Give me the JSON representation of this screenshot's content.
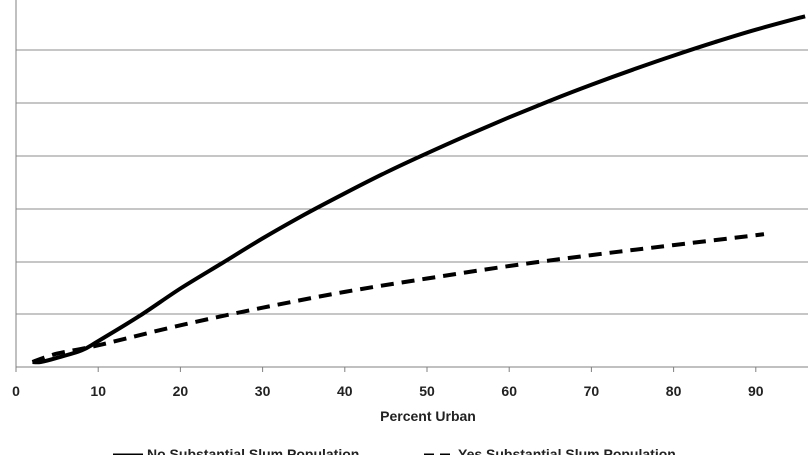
{
  "chart_data": {
    "type": "line",
    "title": "",
    "xlabel": "Percent Urban",
    "ylabel": "",
    "xlim": [
      0,
      96
    ],
    "x_ticks": [
      0,
      10,
      20,
      30,
      40,
      50,
      60,
      70,
      80,
      90
    ],
    "grid": "horizontal",
    "legend_position": "bottom",
    "series": [
      {
        "name": "No Substantial  Slum Population",
        "style": "solid",
        "color": "#000000",
        "x": [
          2,
          3,
          5,
          8,
          10,
          15,
          20,
          25,
          30,
          35,
          40,
          45,
          50,
          55,
          60,
          65,
          70,
          75,
          80,
          85,
          90,
          96
        ],
        "y": [
          0.0,
          0.0,
          0.05,
          0.14,
          0.25,
          0.55,
          0.88,
          1.18,
          1.48,
          1.76,
          2.02,
          2.27,
          2.5,
          2.72,
          2.93,
          3.13,
          3.32,
          3.5,
          3.67,
          3.83,
          3.98,
          4.14
        ]
      },
      {
        "name": "Yes Substantial  Slum Population",
        "style": "dashed",
        "color": "#000000",
        "x": [
          2,
          5,
          10,
          20,
          30,
          40,
          50,
          60,
          70,
          80,
          91
        ],
        "y": [
          0.0,
          0.1,
          0.2,
          0.44,
          0.65,
          0.84,
          1.0,
          1.15,
          1.28,
          1.4,
          1.53
        ]
      }
    ]
  }
}
